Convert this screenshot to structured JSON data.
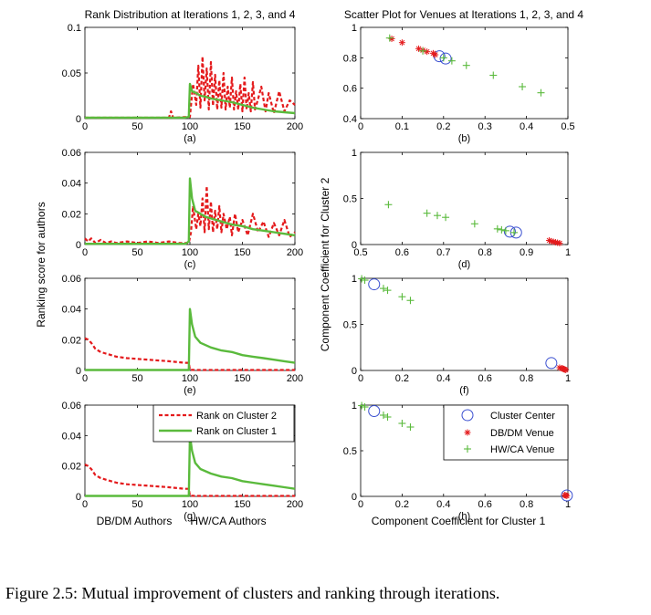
{
  "figure": {
    "caption": "Figure 2.5: Mutual improvement of clusters and ranking through iterations.",
    "left_title": "Rank Distribution at Iterations 1, 2, 3, and 4",
    "right_title": "Scatter Plot for Venues at Iterations 1, 2, 3, and 4",
    "left_ylabel": "Ranking score for authors",
    "right_ylabel": "Component Coefficient for Cluster 2",
    "right_xlabel": "Component Coefficient for Cluster 1",
    "left_xlabel_a": "DB/DM Authors",
    "left_xlabel_b": "HW/CA Authors",
    "left_legend": [
      "Rank on Cluster 2",
      "Rank on Cluster 1"
    ],
    "right_legend": [
      "Cluster Center",
      "DB/DM Venue",
      "HW/CA Venue"
    ],
    "colors": {
      "cluster2": "#e41a1c",
      "cluster1": "#5aba3c",
      "center": "#3a4fd0"
    }
  },
  "chart_data": [
    {
      "id": "a",
      "label": "(a)",
      "type": "line",
      "xlim": [
        0,
        200
      ],
      "ylim": [
        0,
        0.1
      ],
      "xticks": [
        0,
        50,
        100,
        150,
        200
      ],
      "yticks": [
        0,
        0.05,
        0.1
      ],
      "ytick_labels": [
        "0",
        "0.05",
        "0.1"
      ],
      "series": [
        {
          "name": "Rank on Cluster 2",
          "style": "dashed",
          "kind": "spiky",
          "x": [
            0,
            80,
            82,
            84,
            100,
            103,
            106,
            108,
            110,
            112,
            114,
            116,
            118,
            120,
            122,
            124,
            126,
            128,
            130,
            132,
            134,
            136,
            138,
            140,
            142,
            144,
            146,
            148,
            150,
            152,
            154,
            156,
            158,
            160,
            162,
            165,
            168,
            172,
            175,
            180,
            185,
            190,
            195,
            200
          ],
          "y": [
            0.001,
            0.001,
            0.008,
            0.001,
            0.002,
            0.038,
            0.015,
            0.058,
            0.012,
            0.068,
            0.02,
            0.055,
            0.01,
            0.062,
            0.014,
            0.048,
            0.01,
            0.042,
            0.012,
            0.05,
            0.01,
            0.035,
            0.012,
            0.045,
            0.01,
            0.03,
            0.01,
            0.038,
            0.008,
            0.045,
            0.01,
            0.028,
            0.008,
            0.04,
            0.01,
            0.022,
            0.035,
            0.008,
            0.028,
            0.006,
            0.03,
            0.008,
            0.02,
            0.015
          ]
        },
        {
          "name": "Rank on Cluster 1",
          "style": "solid",
          "kind": "line",
          "x": [
            0,
            95,
            99,
            100,
            102,
            106,
            110,
            115,
            120,
            130,
            140,
            150,
            160,
            170,
            180,
            190,
            200
          ],
          "y": [
            0.001,
            0.001,
            0.002,
            0.038,
            0.03,
            0.028,
            0.025,
            0.024,
            0.022,
            0.02,
            0.018,
            0.015,
            0.012,
            0.01,
            0.008,
            0.007,
            0.006
          ]
        }
      ]
    },
    {
      "id": "b",
      "label": "(b)",
      "type": "scatter",
      "xlim": [
        0,
        0.5
      ],
      "ylim": [
        0.4,
        1
      ],
      "xticks": [
        0,
        0.1,
        0.2,
        0.3,
        0.4,
        0.5
      ],
      "yticks": [
        0.4,
        0.6,
        0.8,
        1
      ],
      "ytick_labels": [
        "0.4",
        "0.6",
        "0.8",
        "1"
      ],
      "series": [
        {
          "name": "Cluster Center",
          "marker": "circle",
          "x": [
            0.19,
            0.205
          ],
          "y": [
            0.81,
            0.795
          ]
        },
        {
          "name": "DB/DM Venue",
          "marker": "star",
          "x": [
            0.075,
            0.1,
            0.14,
            0.15,
            0.16,
            0.175,
            0.18
          ],
          "y": [
            0.925,
            0.9,
            0.86,
            0.85,
            0.84,
            0.83,
            0.82
          ]
        },
        {
          "name": "HW/CA Venue",
          "marker": "plus",
          "x": [
            0.07,
            0.15,
            0.2,
            0.22,
            0.255,
            0.32,
            0.39,
            0.435
          ],
          "y": [
            0.93,
            0.845,
            0.8,
            0.78,
            0.75,
            0.685,
            0.61,
            0.57
          ]
        }
      ]
    },
    {
      "id": "c",
      "label": "(c)",
      "type": "line",
      "xlim": [
        0,
        200
      ],
      "ylim": [
        0,
        0.06
      ],
      "xticks": [
        0,
        50,
        100,
        150,
        200
      ],
      "yticks": [
        0,
        0.02,
        0.04,
        0.06
      ],
      "ytick_labels": [
        "0",
        "0.02",
        "0.04",
        "0.06"
      ],
      "series": [
        {
          "name": "Rank on Cluster 2",
          "style": "dashed",
          "kind": "spiky",
          "x": [
            0,
            3,
            6,
            10,
            15,
            20,
            25,
            30,
            40,
            50,
            60,
            70,
            80,
            90,
            99,
            101,
            103,
            106,
            108,
            110,
            112,
            114,
            116,
            118,
            120,
            122,
            124,
            126,
            128,
            130,
            132,
            135,
            138,
            140,
            143,
            146,
            150,
            155,
            160,
            165,
            170,
            175,
            180,
            185,
            190,
            195,
            200
          ],
          "y": [
            0.004,
            0.002,
            0.004,
            0.001,
            0.003,
            0.001,
            0.002,
            0.001,
            0.002,
            0.001,
            0.002,
            0.001,
            0.002,
            0.001,
            0.001,
            0.008,
            0.025,
            0.01,
            0.02,
            0.012,
            0.03,
            0.008,
            0.038,
            0.01,
            0.028,
            0.008,
            0.022,
            0.01,
            0.025,
            0.008,
            0.02,
            0.01,
            0.018,
            0.006,
            0.02,
            0.008,
            0.016,
            0.006,
            0.02,
            0.008,
            0.015,
            0.005,
            0.014,
            0.006,
            0.016,
            0.005,
            0.008
          ]
        },
        {
          "name": "Rank on Cluster 1",
          "style": "solid",
          "kind": "line",
          "x": [
            0,
            96,
            99,
            100,
            102,
            105,
            110,
            115,
            120,
            130,
            140,
            150,
            160,
            170,
            180,
            190,
            200
          ],
          "y": [
            0.0005,
            0.0005,
            0.002,
            0.043,
            0.03,
            0.022,
            0.02,
            0.018,
            0.017,
            0.015,
            0.013,
            0.012,
            0.01,
            0.009,
            0.008,
            0.007,
            0.006
          ]
        }
      ]
    },
    {
      "id": "d",
      "label": "(d)",
      "type": "scatter",
      "xlim": [
        0.5,
        1
      ],
      "ylim": [
        0,
        1
      ],
      "xticks": [
        0.5,
        0.6,
        0.7,
        0.8,
        0.9,
        1
      ],
      "yticks": [
        0,
        0.5,
        1
      ],
      "ytick_labels": [
        "0",
        "0.5",
        "1"
      ],
      "series": [
        {
          "name": "Cluster Center",
          "marker": "circle",
          "x": [
            0.86,
            0.875
          ],
          "y": [
            0.14,
            0.13
          ]
        },
        {
          "name": "DB/DM Venue",
          "marker": "star",
          "x": [
            0.955,
            0.96,
            0.965,
            0.97,
            0.975,
            0.98
          ],
          "y": [
            0.045,
            0.035,
            0.03,
            0.025,
            0.02,
            0.015
          ]
        },
        {
          "name": "HW/CA Venue",
          "marker": "plus",
          "x": [
            0.567,
            0.66,
            0.685,
            0.705,
            0.775,
            0.83,
            0.84,
            0.85,
            0.87
          ],
          "y": [
            0.433,
            0.34,
            0.315,
            0.295,
            0.225,
            0.17,
            0.16,
            0.15,
            0.13
          ]
        }
      ]
    },
    {
      "id": "e",
      "label": "(e)",
      "type": "line",
      "xlim": [
        0,
        200
      ],
      "ylim": [
        0,
        0.06
      ],
      "xticks": [
        0,
        50,
        100,
        150,
        200
      ],
      "yticks": [
        0,
        0.02,
        0.04,
        0.06
      ],
      "ytick_labels": [
        "0",
        "0.02",
        "0.04",
        "0.06"
      ],
      "series": [
        {
          "name": "Rank on Cluster 2",
          "style": "dashed",
          "kind": "line",
          "x": [
            0,
            3,
            6,
            10,
            15,
            20,
            30,
            40,
            60,
            80,
            95,
            99,
            100,
            105,
            150,
            200
          ],
          "y": [
            0.021,
            0.02,
            0.018,
            0.014,
            0.012,
            0.011,
            0.009,
            0.008,
            0.007,
            0.006,
            0.005,
            0.005,
            0.0005,
            0.0003,
            0.0003,
            0.0003
          ]
        },
        {
          "name": "Rank on Cluster 1",
          "style": "solid",
          "kind": "line",
          "x": [
            0,
            99,
            100,
            102,
            105,
            110,
            120,
            130,
            140,
            150,
            160,
            170,
            180,
            190,
            200
          ],
          "y": [
            0.0003,
            0.0003,
            0.04,
            0.03,
            0.022,
            0.018,
            0.015,
            0.013,
            0.012,
            0.01,
            0.009,
            0.008,
            0.007,
            0.006,
            0.005
          ]
        }
      ]
    },
    {
      "id": "f",
      "label": "(f)",
      "type": "scatter",
      "xlim": [
        0,
        1
      ],
      "ylim": [
        0,
        1
      ],
      "xticks": [
        0,
        0.2,
        0.4,
        0.6,
        0.8,
        1
      ],
      "yticks": [
        0,
        0.5,
        1
      ],
      "ytick_labels": [
        "0",
        "0.5",
        "1"
      ],
      "series": [
        {
          "name": "Cluster Center",
          "marker": "circle",
          "x": [
            0.065,
            0.92
          ],
          "y": [
            0.935,
            0.08
          ]
        },
        {
          "name": "DB/DM Venue",
          "marker": "star",
          "x": [
            0.96,
            0.97,
            0.975,
            0.98,
            0.985,
            0.99
          ],
          "y": [
            0.03,
            0.025,
            0.02,
            0.015,
            0.01,
            0.005
          ]
        },
        {
          "name": "HW/CA Venue",
          "marker": "plus",
          "x": [
            0.005,
            0.02,
            0.11,
            0.13,
            0.2,
            0.24
          ],
          "y": [
            0.995,
            0.98,
            0.89,
            0.87,
            0.8,
            0.76
          ]
        }
      ]
    },
    {
      "id": "g",
      "label": "(g)",
      "type": "line",
      "xlim": [
        0,
        200
      ],
      "ylim": [
        0,
        0.06
      ],
      "xticks": [
        0,
        50,
        100,
        150,
        200
      ],
      "yticks": [
        0,
        0.02,
        0.04,
        0.06
      ],
      "ytick_labels": [
        "0",
        "0.02",
        "0.04",
        "0.06"
      ],
      "series": [
        {
          "name": "Rank on Cluster 2",
          "style": "dashed",
          "kind": "line",
          "x": [
            0,
            3,
            6,
            10,
            15,
            20,
            30,
            40,
            60,
            80,
            95,
            99,
            100,
            105,
            150,
            200
          ],
          "y": [
            0.021,
            0.02,
            0.018,
            0.014,
            0.012,
            0.011,
            0.009,
            0.008,
            0.007,
            0.006,
            0.005,
            0.005,
            0.0005,
            0.0003,
            0.0003,
            0.0003
          ]
        },
        {
          "name": "Rank on Cluster 1",
          "style": "solid",
          "kind": "line",
          "x": [
            0,
            99,
            100,
            102,
            105,
            110,
            120,
            130,
            140,
            150,
            160,
            170,
            180,
            190,
            200
          ],
          "y": [
            0.0003,
            0.0003,
            0.04,
            0.03,
            0.022,
            0.018,
            0.015,
            0.013,
            0.012,
            0.01,
            0.009,
            0.008,
            0.007,
            0.006,
            0.005
          ]
        }
      ]
    },
    {
      "id": "h",
      "label": "(h)",
      "type": "scatter",
      "xlim": [
        0,
        1
      ],
      "ylim": [
        0,
        1
      ],
      "xticks": [
        0,
        0.2,
        0.4,
        0.6,
        0.8,
        1
      ],
      "yticks": [
        0,
        0.5,
        1
      ],
      "ytick_labels": [
        "0",
        "0.5",
        "1"
      ],
      "series": [
        {
          "name": "Cluster Center",
          "marker": "circle",
          "x": [
            0.065,
            0.995
          ],
          "y": [
            0.935,
            0.01
          ]
        },
        {
          "name": "DB/DM Venue",
          "marker": "star",
          "x": [
            0.985,
            0.99,
            0.995
          ],
          "y": [
            0.015,
            0.01,
            0.005
          ]
        },
        {
          "name": "HW/CA Venue",
          "marker": "plus",
          "x": [
            0.005,
            0.02,
            0.11,
            0.13,
            0.2,
            0.24
          ],
          "y": [
            0.995,
            0.98,
            0.89,
            0.87,
            0.8,
            0.76
          ]
        }
      ]
    }
  ]
}
